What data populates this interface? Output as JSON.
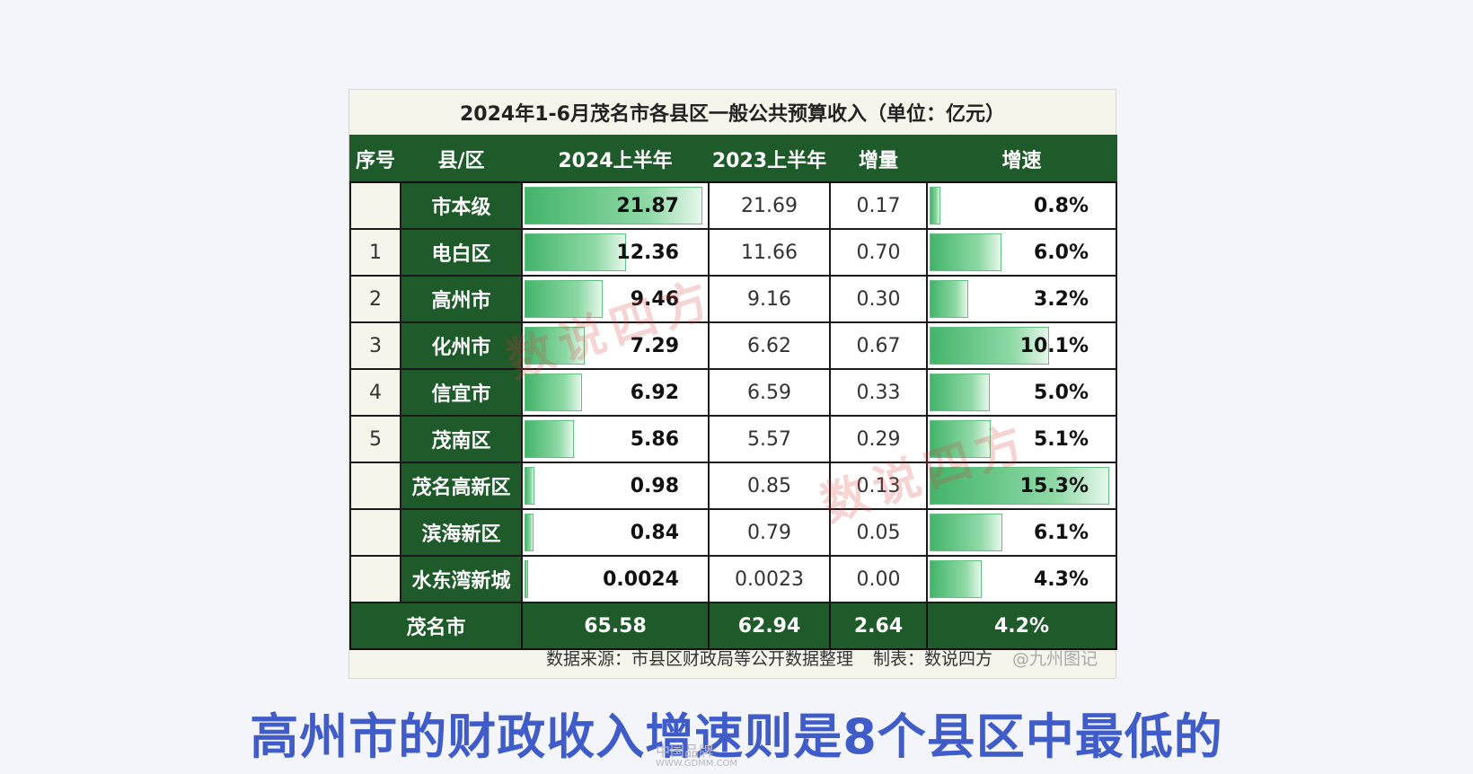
{
  "table": {
    "title": "2024年1-6月茂名市各县区一般公共预算收入（单位：亿元）",
    "headers": [
      "序号",
      "县/区",
      "2024上半年",
      "2023上半年",
      "增量",
      "增速"
    ],
    "rows": [
      {
        "seq": "",
        "name": "市本级",
        "h2024": "21.87",
        "h2024_value": 21.87,
        "h2023": "21.69",
        "delta": "0.17",
        "rate": "0.8%",
        "rate_value": 0.8
      },
      {
        "seq": "1",
        "name": "电白区",
        "h2024": "12.36",
        "h2024_value": 12.36,
        "h2023": "11.66",
        "delta": "0.70",
        "rate": "6.0%",
        "rate_value": 6.0
      },
      {
        "seq": "2",
        "name": "高州市",
        "h2024": "9.46",
        "h2024_value": 9.46,
        "h2023": "9.16",
        "delta": "0.30",
        "rate": "3.2%",
        "rate_value": 3.2
      },
      {
        "seq": "3",
        "name": "化州市",
        "h2024": "7.29",
        "h2024_value": 7.29,
        "h2023": "6.62",
        "delta": "0.67",
        "rate": "10.1%",
        "rate_value": 10.1
      },
      {
        "seq": "4",
        "name": "信宜市",
        "h2024": "6.92",
        "h2024_value": 6.92,
        "h2023": "6.59",
        "delta": "0.33",
        "rate": "5.0%",
        "rate_value": 5.0
      },
      {
        "seq": "5",
        "name": "茂南区",
        "h2024": "5.86",
        "h2024_value": 5.86,
        "h2023": "5.57",
        "delta": "0.29",
        "rate": "5.1%",
        "rate_value": 5.1
      },
      {
        "seq": "",
        "name": "茂名高新区",
        "h2024": "0.98",
        "h2024_value": 0.98,
        "h2023": "0.85",
        "delta": "0.13",
        "rate": "15.3%",
        "rate_value": 15.3
      },
      {
        "seq": "",
        "name": "滨海新区",
        "h2024": "0.84",
        "h2024_value": 0.84,
        "h2023": "0.79",
        "delta": "0.05",
        "rate": "6.1%",
        "rate_value": 6.1
      },
      {
        "seq": "",
        "name": "水东湾新城",
        "h2024": "0.0024",
        "h2024_value": 0.0024,
        "h2023": "0.0023",
        "delta": "0.00",
        "rate": "4.3%",
        "rate_value": 4.3
      }
    ],
    "total": {
      "name": "茂名市",
      "h2024": "65.58",
      "h2023": "62.94",
      "delta": "2.64",
      "rate": "4.2%"
    },
    "footer": {
      "source": "数据来源：市县区财政局等公开数据整理",
      "maker": "制表：数说四方",
      "tag": "@九州图记"
    },
    "watermark": "数说四方"
  },
  "caption": "高州市的财政收入增速则是8个县区中最低的",
  "site_mark": {
    "name": "中国品牌",
    "url": "WWW.GDMM.COM"
  },
  "colors": {
    "header_green": "#1e5a2a",
    "bar_green": "#43b46a",
    "caption_blue": "#3f5cc9",
    "watermark_red": "#dc3c3c"
  }
}
